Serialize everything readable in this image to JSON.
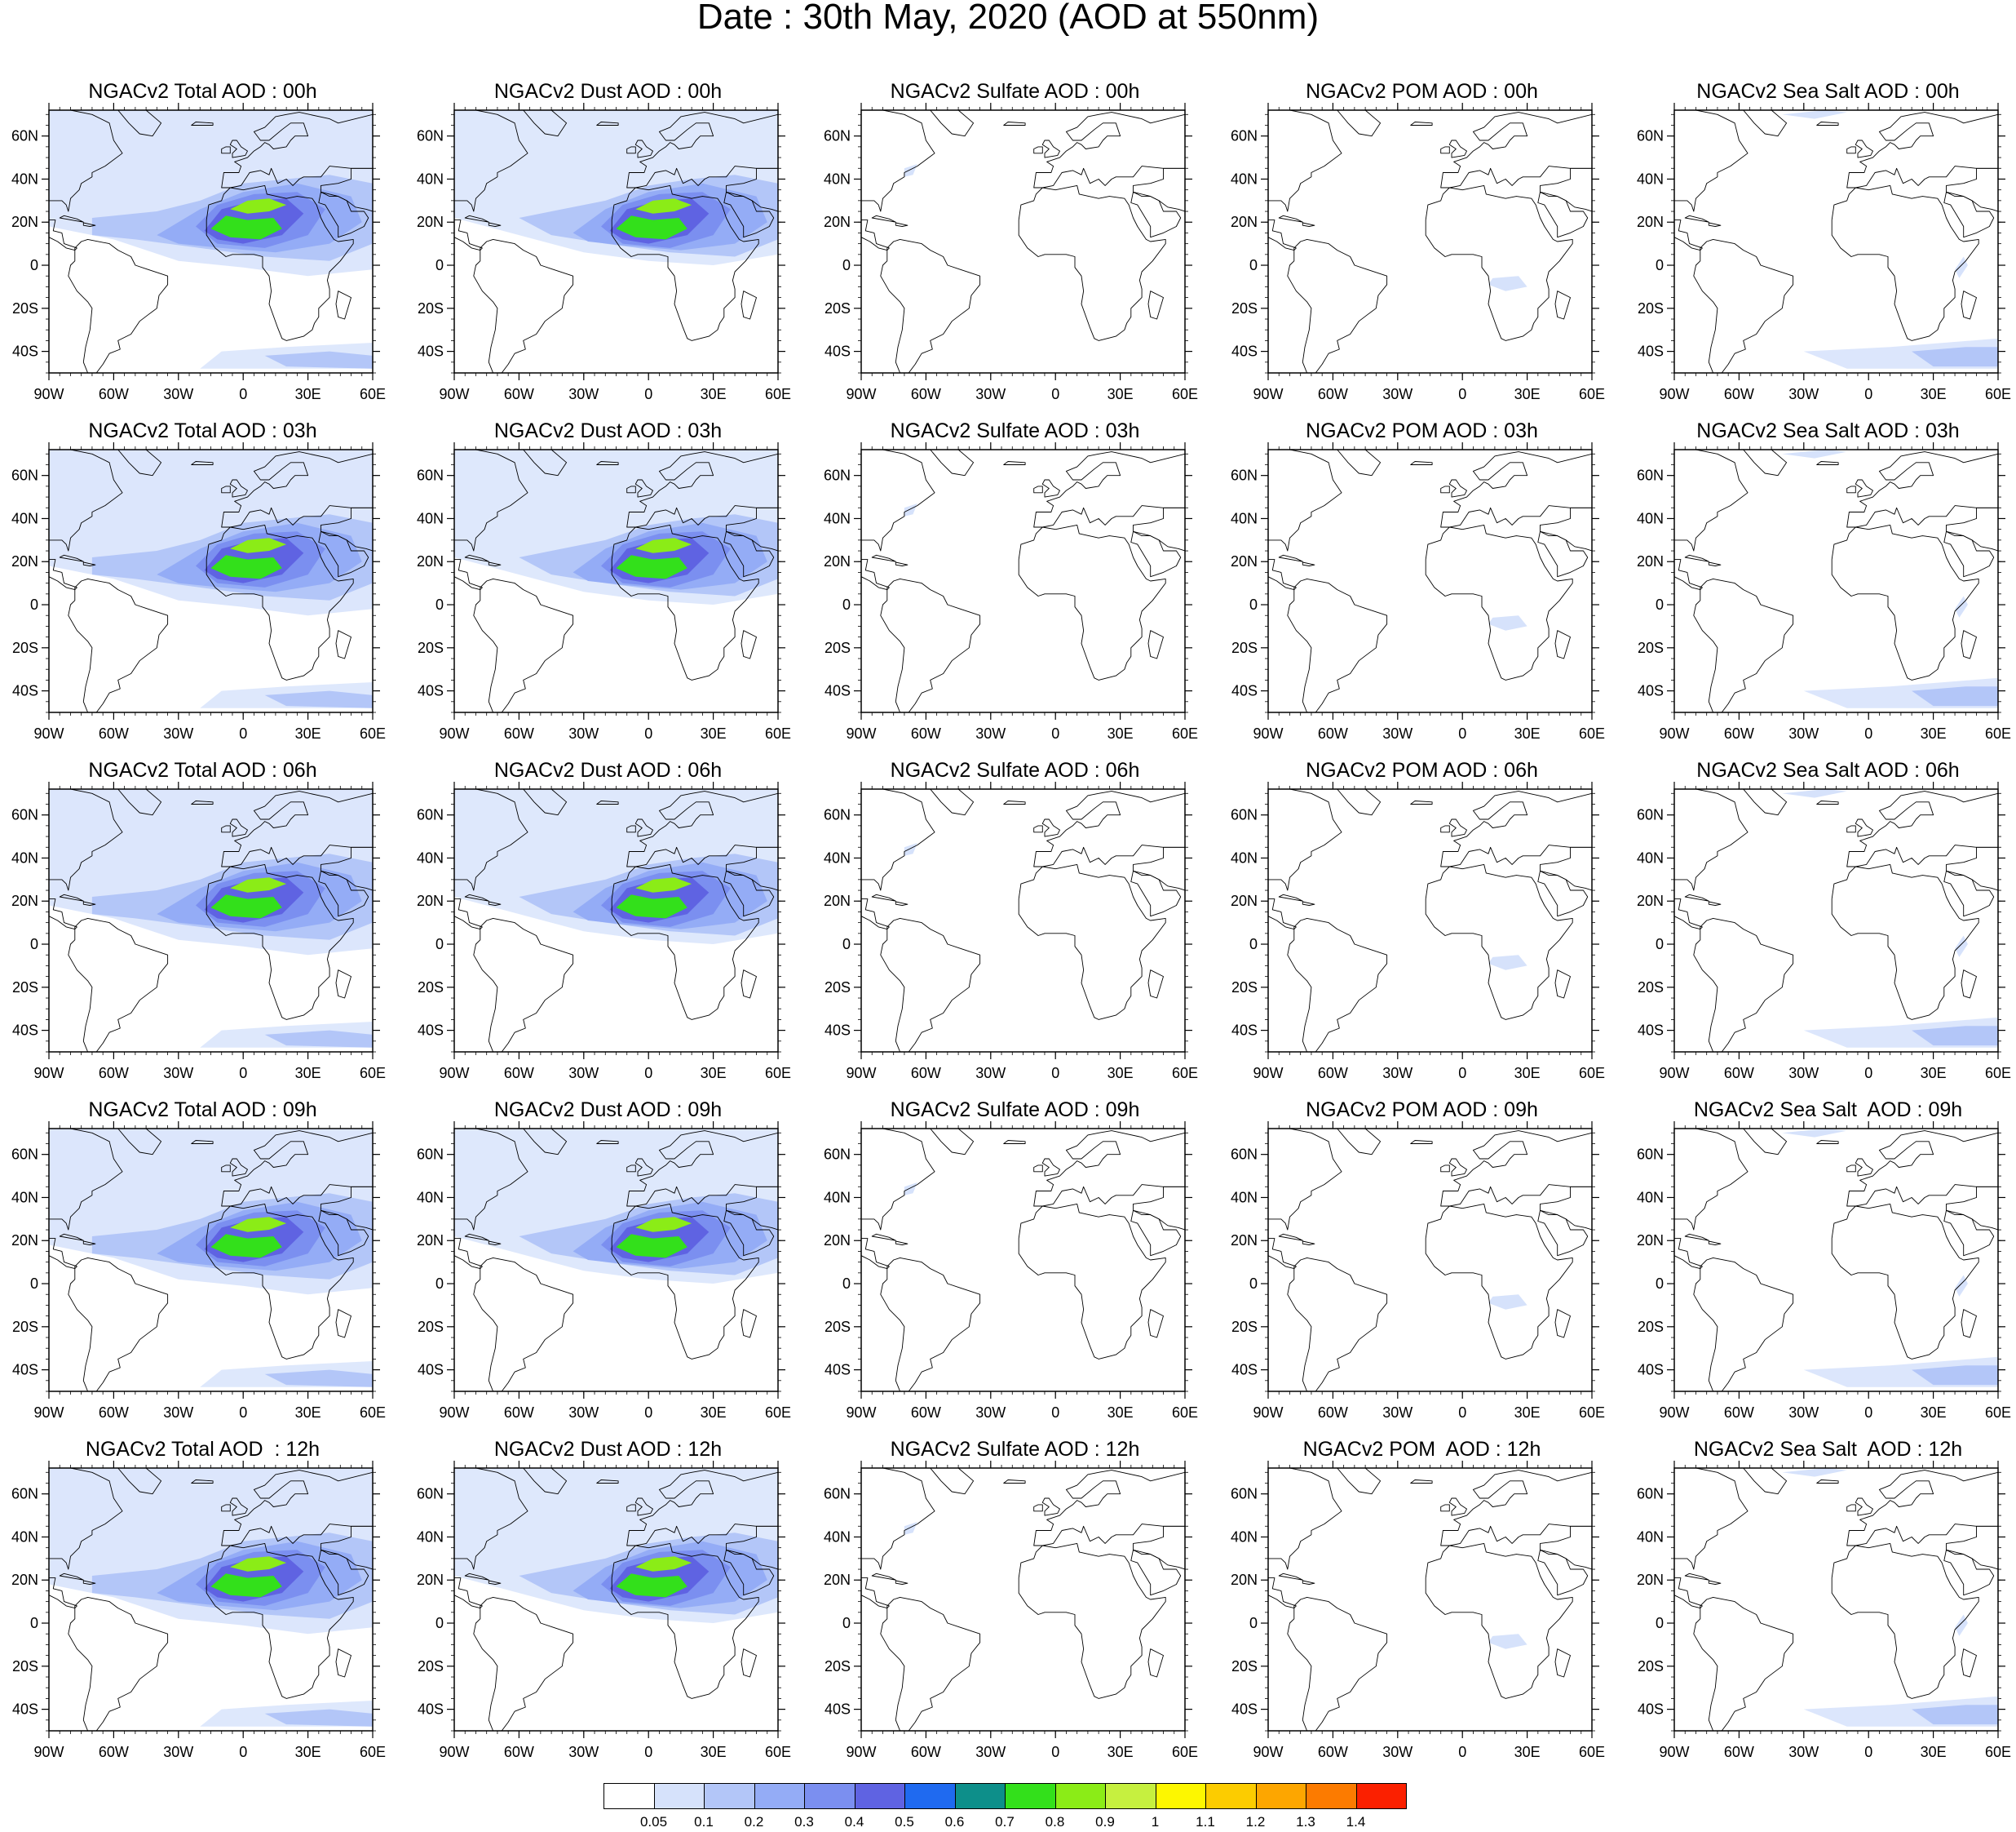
{
  "figure": {
    "title": "Date : 30th May, 2020 (AOD at 550nm)"
  },
  "map_axes": {
    "lat_labels": [
      "60N",
      "40N",
      "20N",
      "0",
      "20S",
      "40S"
    ],
    "lat_values": [
      60,
      40,
      20,
      0,
      -20,
      -40
    ],
    "lon_labels": [
      "90W",
      "60W",
      "30W",
      "0",
      "30E",
      "60E"
    ],
    "lon_values": [
      -90,
      -60,
      -30,
      0,
      30,
      60
    ],
    "lat_range": [
      -50,
      72
    ],
    "lon_range": [
      -90,
      60
    ]
  },
  "panels": [
    {
      "title": "NGACv2 Total AOD : 00h",
      "field": "total",
      "hour": "00h"
    },
    {
      "title": "NGACv2 Dust AOD : 00h",
      "field": "dust",
      "hour": "00h"
    },
    {
      "title": "NGACv2 Sulfate AOD : 00h",
      "field": "sulfate",
      "hour": "00h"
    },
    {
      "title": "NGACv2 POM AOD : 00h",
      "field": "pom",
      "hour": "00h"
    },
    {
      "title": "NGACv2 Sea Salt AOD : 00h",
      "field": "seasalt",
      "hour": "00h"
    },
    {
      "title": "NGACv2 Total AOD : 03h",
      "field": "total",
      "hour": "03h"
    },
    {
      "title": "NGACv2 Dust AOD : 03h",
      "field": "dust",
      "hour": "03h"
    },
    {
      "title": "NGACv2 Sulfate AOD : 03h",
      "field": "sulfate",
      "hour": "03h"
    },
    {
      "title": "NGACv2 POM AOD : 03h",
      "field": "pom",
      "hour": "03h"
    },
    {
      "title": "NGACv2 Sea Salt AOD : 03h",
      "field": "seasalt",
      "hour": "03h"
    },
    {
      "title": "NGACv2 Total AOD : 06h",
      "field": "total",
      "hour": "06h"
    },
    {
      "title": "NGACv2 Dust AOD : 06h",
      "field": "dust",
      "hour": "06h"
    },
    {
      "title": "NGACv2 Sulfate AOD : 06h",
      "field": "sulfate",
      "hour": "06h"
    },
    {
      "title": "NGACv2 POM AOD : 06h",
      "field": "pom",
      "hour": "06h"
    },
    {
      "title": "NGACv2 Sea Salt AOD : 06h",
      "field": "seasalt",
      "hour": "06h"
    },
    {
      "title": "NGACv2 Total AOD : 09h",
      "field": "total",
      "hour": "09h"
    },
    {
      "title": "NGACv2 Dust AOD : 09h",
      "field": "dust",
      "hour": "09h"
    },
    {
      "title": "NGACv2 Sulfate AOD : 09h",
      "field": "sulfate",
      "hour": "09h"
    },
    {
      "title": "NGACv2 POM AOD : 09h",
      "field": "pom",
      "hour": "09h"
    },
    {
      "title": "NGACv2 Sea Salt  AOD : 09h",
      "field": "seasalt",
      "hour": "09h"
    },
    {
      "title": "NGACv2 Total AOD  : 12h",
      "field": "total",
      "hour": "12h"
    },
    {
      "title": "NGACv2 Dust AOD : 12h",
      "field": "dust",
      "hour": "12h"
    },
    {
      "title": "NGACv2 Sulfate AOD : 12h",
      "field": "sulfate",
      "hour": "12h"
    },
    {
      "title": "NGACv2 POM  AOD : 12h",
      "field": "pom",
      "hour": "12h"
    },
    {
      "title": "NGACv2 Sea Salt  AOD : 12h",
      "field": "seasalt",
      "hour": "12h"
    }
  ],
  "colorbar": {
    "tick_labels": [
      "0.05",
      "0.1",
      "0.2",
      "0.3",
      "0.4",
      "0.5",
      "0.6",
      "0.7",
      "0.8",
      "0.9",
      "1",
      "1.1",
      "1.2",
      "1.3",
      "1.4"
    ],
    "colors": [
      "#ffffff",
      "#d6e2fb",
      "#b3c6f8",
      "#94acf6",
      "#7b8ff0",
      "#5f63e2",
      "#1f6af0",
      "#0d8f8a",
      "#33e01b",
      "#8bec17",
      "#c6f03f",
      "#fdf700",
      "#fccc00",
      "#fda600",
      "#fc7b00",
      "#fb2000"
    ]
  },
  "colors": {
    "land_outline": "#000000",
    "ocean_background": "#ffffff"
  }
}
